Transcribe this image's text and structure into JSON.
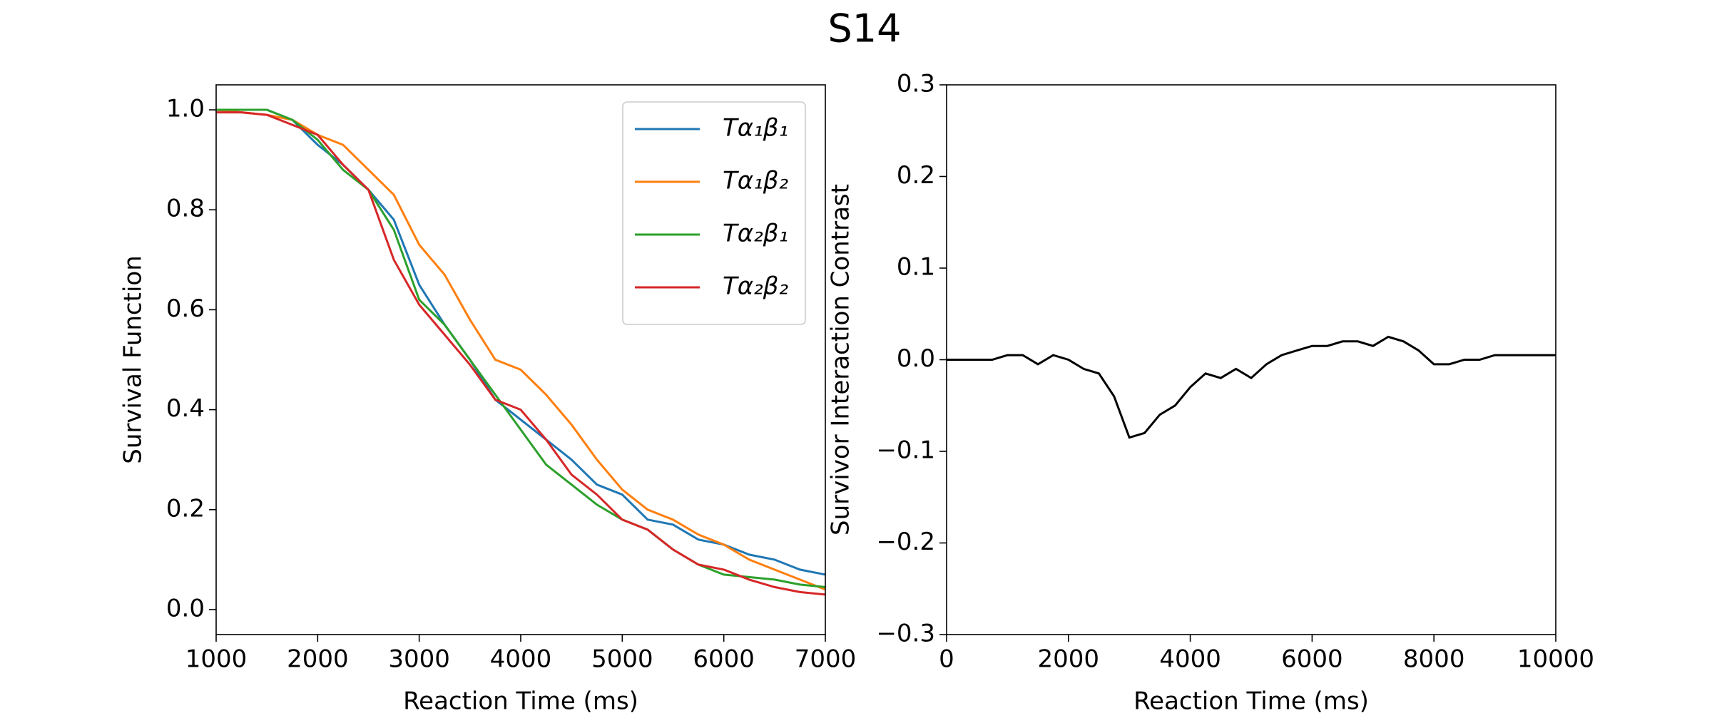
{
  "title": "S14",
  "chart_data": [
    {
      "type": "line",
      "xlabel": "Reaction Time (ms)",
      "ylabel": "Survival Function",
      "x": [
        1000,
        1250,
        1500,
        1750,
        2000,
        2250,
        2500,
        2750,
        3000,
        3250,
        3500,
        3750,
        4000,
        4250,
        4500,
        4750,
        5000,
        5250,
        5500,
        5750,
        6000,
        6250,
        6500,
        6750,
        7000
      ],
      "series": [
        {
          "name": "Tα₁β₁",
          "color": "#1f77b4",
          "values": [
            1.0,
            1.0,
            1.0,
            0.98,
            0.93,
            0.89,
            0.84,
            0.78,
            0.65,
            0.57,
            0.5,
            0.42,
            0.38,
            0.34,
            0.3,
            0.25,
            0.23,
            0.18,
            0.17,
            0.14,
            0.13,
            0.11,
            0.1,
            0.08,
            0.07
          ]
        },
        {
          "name": "Tα₁β₂",
          "color": "#ff7f0e",
          "values": [
            1.0,
            0.995,
            0.99,
            0.98,
            0.95,
            0.93,
            0.88,
            0.83,
            0.73,
            0.67,
            0.58,
            0.5,
            0.48,
            0.43,
            0.37,
            0.3,
            0.24,
            0.2,
            0.18,
            0.15,
            0.13,
            0.1,
            0.08,
            0.06,
            0.04
          ]
        },
        {
          "name": "Tα₂β₁",
          "color": "#2ca02c",
          "values": [
            1.0,
            1.0,
            1.0,
            0.98,
            0.94,
            0.88,
            0.84,
            0.76,
            0.62,
            0.57,
            0.5,
            0.43,
            0.36,
            0.29,
            0.25,
            0.21,
            0.18,
            0.16,
            0.12,
            0.09,
            0.07,
            0.065,
            0.06,
            0.05,
            0.045
          ]
        },
        {
          "name": "Tα₂β₂",
          "color": "#d62728",
          "values": [
            0.995,
            0.995,
            0.99,
            0.97,
            0.95,
            0.89,
            0.84,
            0.7,
            0.61,
            0.55,
            0.49,
            0.42,
            0.4,
            0.34,
            0.27,
            0.23,
            0.18,
            0.16,
            0.12,
            0.09,
            0.08,
            0.06,
            0.045,
            0.035,
            0.03
          ]
        }
      ],
      "xlim": [
        1000,
        7000
      ],
      "xticks": [
        1000,
        2000,
        3000,
        4000,
        5000,
        6000,
        7000
      ],
      "ylim": [
        -0.05,
        1.05
      ],
      "yticks": [
        {
          "value": 0,
          "label": "0.0"
        },
        0.2,
        0.4,
        0.6,
        0.8,
        {
          "value": 1,
          "label": "1.0"
        }
      ],
      "legend": "upper right"
    },
    {
      "type": "line",
      "xlabel": "Reaction Time (ms)",
      "ylabel": "Survivor Interaction Contrast",
      "x": [
        0,
        250,
        500,
        750,
        1000,
        1250,
        1500,
        1750,
        2000,
        2250,
        2500,
        2750,
        3000,
        3250,
        3500,
        3750,
        4000,
        4250,
        4500,
        4750,
        5000,
        5250,
        5500,
        5750,
        6000,
        6250,
        6500,
        6750,
        7000,
        7250,
        7500,
        7750,
        8000,
        8250,
        8500,
        8750,
        9000,
        9250,
        9500,
        9750,
        10000
      ],
      "series": [
        {
          "color": "#000000",
          "values": [
            0,
            0,
            0,
            0,
            0.005,
            0.005,
            -0.005,
            0.005,
            0,
            -0.01,
            -0.015,
            -0.04,
            -0.085,
            -0.08,
            -0.06,
            -0.05,
            -0.03,
            -0.015,
            -0.02,
            -0.01,
            -0.02,
            -0.005,
            0.005,
            0.01,
            0.015,
            0.015,
            0.02,
            0.02,
            0.015,
            0.025,
            0.02,
            0.01,
            -0.005,
            -0.005,
            0,
            0,
            0.005,
            0.005,
            0.005,
            0.005,
            0.005
          ]
        }
      ],
      "xlim": [
        0,
        10000
      ],
      "xticks": [
        0,
        2000,
        4000,
        6000,
        8000,
        10000
      ],
      "ylim": [
        -0.3,
        0.3
      ],
      "yticks": [
        {
          "value": -0.3,
          "label": "−0.3"
        },
        {
          "value": -0.2,
          "label": "−0.2"
        },
        {
          "value": -0.1,
          "label": "−0.1"
        },
        {
          "value": 0,
          "label": "0.0"
        },
        0.1,
        0.2,
        0.3
      ]
    }
  ]
}
